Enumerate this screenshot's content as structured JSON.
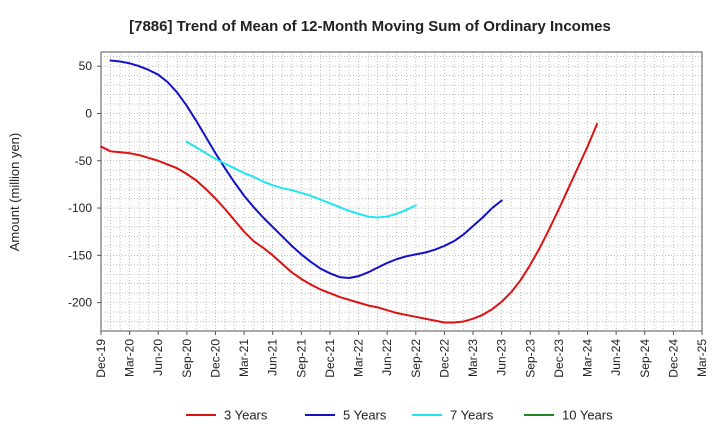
{
  "chart_data": {
    "type": "line",
    "title": "[7886]  Trend of Mean of 12-Month Moving Sum of Ordinary Incomes",
    "xlabel": "",
    "ylabel": "Amount (million yen)",
    "ylim": [
      -230,
      65
    ],
    "yticks": [
      50,
      0,
      -50,
      -100,
      -150,
      -200
    ],
    "x_ticklabels": [
      "Dec-19",
      "Mar-20",
      "Jun-20",
      "Sep-20",
      "Dec-20",
      "Mar-21",
      "Jun-21",
      "Sep-21",
      "Dec-21",
      "Mar-22",
      "Jun-22",
      "Sep-22",
      "Dec-22",
      "Mar-23",
      "Jun-23",
      "Sep-23",
      "Dec-23",
      "Mar-24",
      "Jun-24",
      "Sep-24",
      "Dec-24",
      "Mar-25"
    ],
    "grid": true,
    "legend_position": "bottom",
    "series": [
      {
        "name": "3 Years",
        "color": "#dd1111",
        "x_start": 0,
        "values": [
          -35,
          -40,
          -41,
          -42,
          -44,
          -47,
          -50,
          -54,
          -58,
          -64,
          -71,
          -80,
          -90,
          -101,
          -113,
          -125,
          -135,
          -142,
          -150,
          -159,
          -168,
          -175,
          -181,
          -186,
          -190,
          -194,
          -197,
          -200,
          -203,
          -205,
          -208,
          -211,
          -213,
          -215,
          -217,
          -219,
          -221,
          -221,
          -220,
          -217,
          -213,
          -207,
          -199,
          -189,
          -176,
          -160,
          -142,
          -122,
          -101,
          -79,
          -57,
          -35,
          -11
        ]
      },
      {
        "name": "5 Years",
        "color": "#1111cc",
        "x_start": 1,
        "values": [
          56,
          55,
          53,
          50,
          46,
          41,
          33,
          22,
          8,
          -8,
          -25,
          -42,
          -58,
          -73,
          -87,
          -99,
          -110,
          -120,
          -130,
          -140,
          -149,
          -157,
          -164,
          -169,
          -173,
          -174,
          -172,
          -168,
          -163,
          -158,
          -154,
          -151,
          -149,
          -147,
          -144,
          -140,
          -135,
          -128,
          -119,
          -110,
          -100,
          -92
        ]
      },
      {
        "name": "7 Years",
        "color": "#22e5ee",
        "x_start": 9,
        "values": [
          -30,
          -36,
          -42,
          -48,
          -53,
          -58,
          -63,
          -67,
          -72,
          -76,
          -79,
          -81,
          -84,
          -87,
          -91,
          -95,
          -99,
          -103,
          -106,
          -109,
          -110,
          -109,
          -106,
          -102,
          -97
        ]
      },
      {
        "name": "10 Years",
        "color": "#228822",
        "x_start": 0,
        "values": []
      }
    ]
  }
}
